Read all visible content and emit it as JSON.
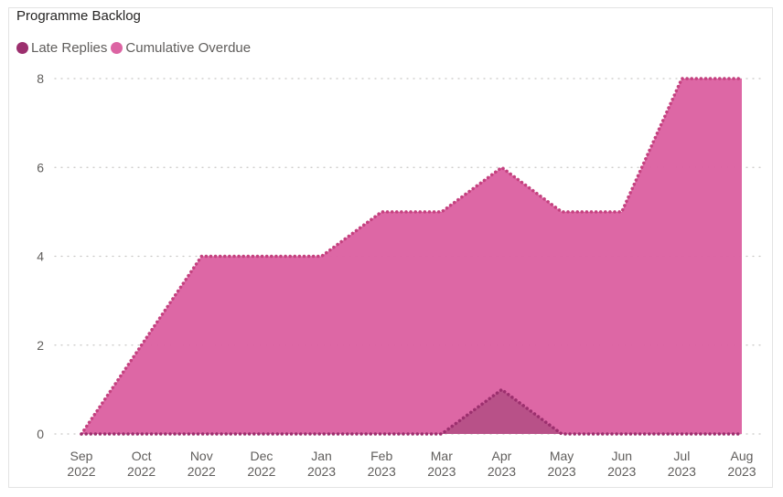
{
  "chart_data": {
    "type": "area",
    "title": "Programme Backlog",
    "categories": [
      [
        "Sep",
        "2022"
      ],
      [
        "Oct",
        "2022"
      ],
      [
        "Nov",
        "2022"
      ],
      [
        "Dec",
        "2022"
      ],
      [
        "Jan",
        "2023"
      ],
      [
        "Feb",
        "2023"
      ],
      [
        "Mar",
        "2023"
      ],
      [
        "Apr",
        "2023"
      ],
      [
        "May",
        "2023"
      ],
      [
        "Jun",
        "2023"
      ],
      [
        "Jul",
        "2023"
      ],
      [
        "Aug",
        "2023"
      ]
    ],
    "series": [
      {
        "name": "Late Replies",
        "color": "#9c2f6e",
        "values": [
          0,
          0,
          0,
          0,
          0,
          0,
          0,
          1,
          0,
          0,
          0,
          0
        ]
      },
      {
        "name": "Cumulative Overdue",
        "color": "#dc64a3",
        "values": [
          0,
          2,
          4,
          4,
          4,
          5,
          5,
          6,
          5,
          5,
          8,
          8
        ]
      }
    ],
    "yticks": [
      "0",
      "2",
      "4",
      "6",
      "8"
    ],
    "ylim": [
      0,
      8
    ],
    "grid": true,
    "legend": "top-left"
  }
}
